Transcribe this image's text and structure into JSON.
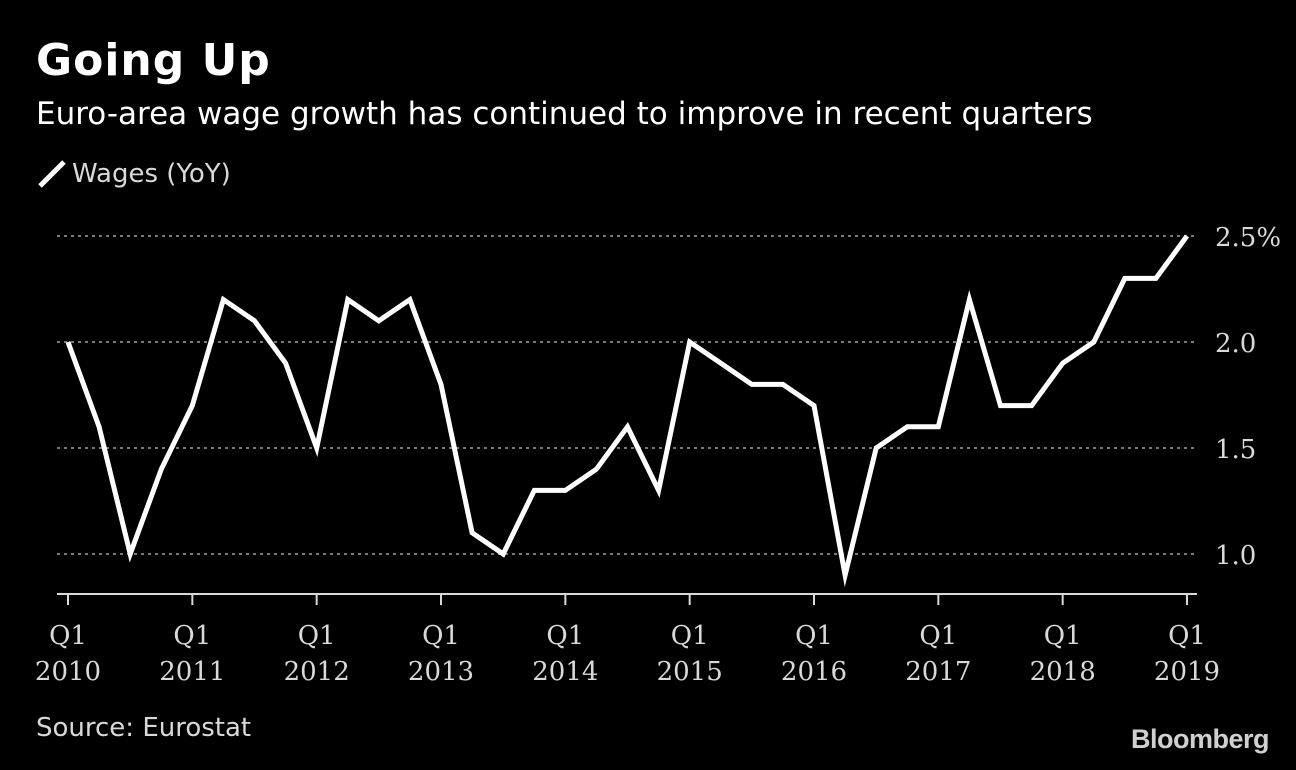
{
  "title": "Going Up",
  "subtitle": "Euro-area wage growth has continued to improve in recent quarters",
  "source": "Source: Eurostat",
  "brand": "Bloomberg",
  "colors": {
    "background": "#000000",
    "line": "#ffffff",
    "grid": "#7a7a7a",
    "text": "#d9d9d9"
  },
  "chart_data": {
    "type": "line",
    "legend": "top-left",
    "grid": true,
    "ylim": [
      0.8,
      2.6
    ],
    "ytick_values": [
      1.0,
      1.5,
      2.0,
      2.5
    ],
    "ytick_labels": [
      "1.0",
      "1.5",
      "2.0",
      "2.5%"
    ],
    "xtick_labels": [
      {
        "q": "Q1",
        "year": "2010"
      },
      {
        "q": "Q1",
        "year": "2011"
      },
      {
        "q": "Q1",
        "year": "2012"
      },
      {
        "q": "Q1",
        "year": "2013"
      },
      {
        "q": "Q1",
        "year": "2014"
      },
      {
        "q": "Q1",
        "year": "2015"
      },
      {
        "q": "Q1",
        "year": "2016"
      },
      {
        "q": "Q1",
        "year": "2017"
      },
      {
        "q": "Q1",
        "year": "2018"
      },
      {
        "q": "Q1",
        "year": "2019"
      }
    ],
    "series": [
      {
        "name": "Wages (YoY)",
        "x": [
          "2010 Q1",
          "2010 Q2",
          "2010 Q3",
          "2010 Q4",
          "2011 Q1",
          "2011 Q2",
          "2011 Q3",
          "2011 Q4",
          "2012 Q1",
          "2012 Q2",
          "2012 Q3",
          "2012 Q4",
          "2013 Q1",
          "2013 Q2",
          "2013 Q3",
          "2013 Q4",
          "2014 Q1",
          "2014 Q2",
          "2014 Q3",
          "2014 Q4",
          "2015 Q1",
          "2015 Q2",
          "2015 Q3",
          "2015 Q4",
          "2016 Q1",
          "2016 Q2",
          "2016 Q3",
          "2016 Q4",
          "2017 Q1",
          "2017 Q2",
          "2017 Q3",
          "2017 Q4",
          "2018 Q1",
          "2018 Q2",
          "2018 Q3",
          "2018 Q4",
          "2019 Q1"
        ],
        "values": [
          2.0,
          1.6,
          1.0,
          1.4,
          1.7,
          2.2,
          2.1,
          1.9,
          1.5,
          2.2,
          2.1,
          2.2,
          1.8,
          1.1,
          1.0,
          1.3,
          1.3,
          1.4,
          1.6,
          1.3,
          2.0,
          1.9,
          1.8,
          1.8,
          1.7,
          0.9,
          1.5,
          1.6,
          1.6,
          2.2,
          1.7,
          1.7,
          1.9,
          2.0,
          2.3,
          2.3,
          2.5
        ]
      }
    ]
  }
}
